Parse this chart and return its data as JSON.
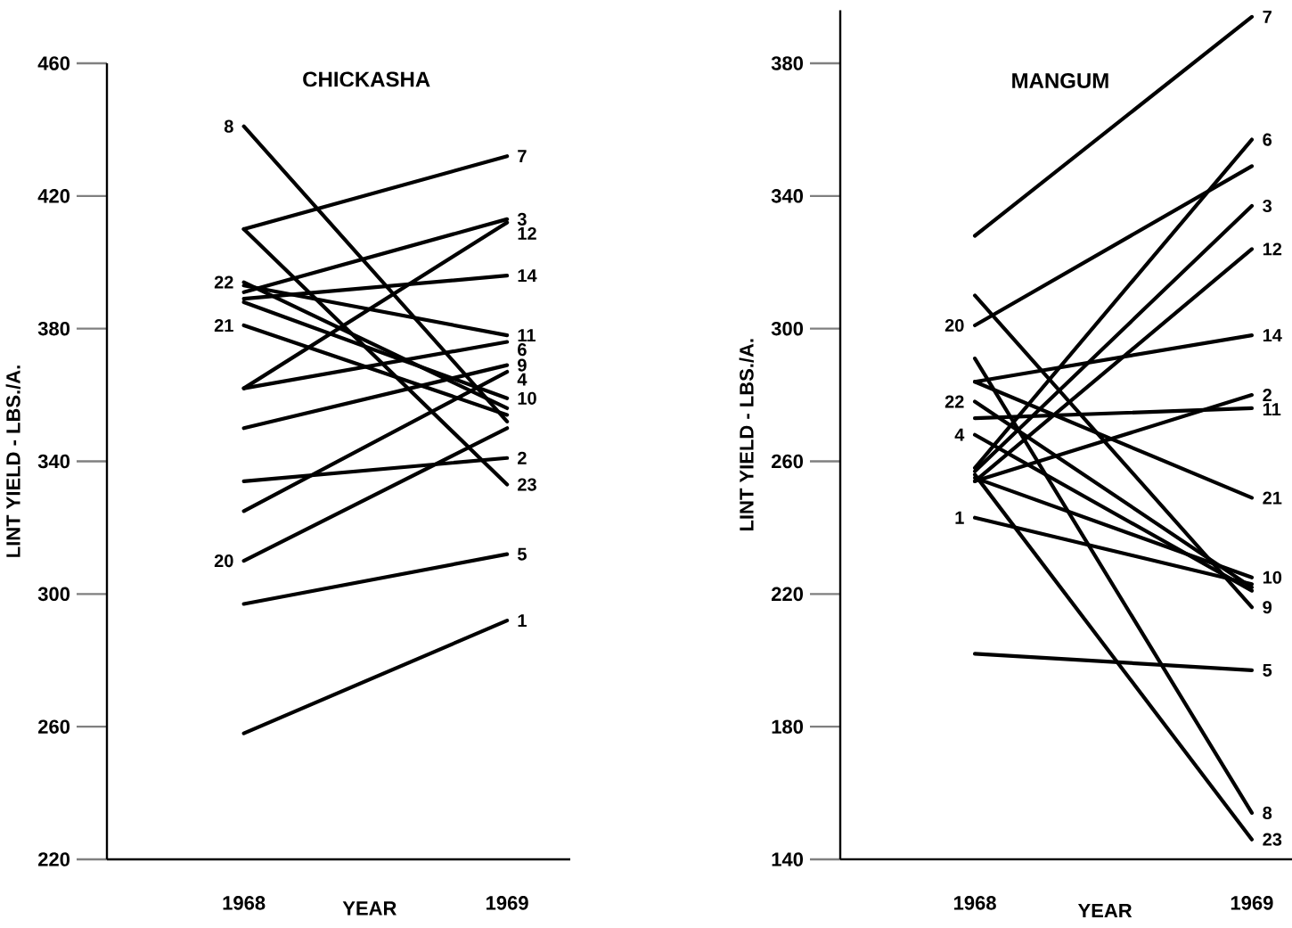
{
  "chart_data": [
    {
      "type": "line",
      "title": "CHICKASHA",
      "xlabel": "YEAR",
      "ylabel": "LINT YIELD - LBS./A.",
      "categories": [
        "1968",
        "1969"
      ],
      "ylim": [
        220,
        460
      ],
      "yticks": [
        220,
        260,
        300,
        340,
        380,
        420,
        460
      ],
      "series": [
        {
          "color": "#000000",
          "values": [
            410,
            432
          ]
        },
        {
          "color": "#000000",
          "values": [
            410,
            333
          ]
        },
        {
          "color": "#000000",
          "values": [
            441,
            352
          ]
        },
        {
          "color": "#000000",
          "values": [
            391,
            413
          ]
        },
        {
          "color": "#000000",
          "values": [
            362,
            412
          ]
        },
        {
          "color": "#000000",
          "values": [
            389,
            396
          ]
        },
        {
          "color": "#000000",
          "values": [
            393,
            378
          ]
        },
        {
          "color": "#000000",
          "values": [
            362,
            376
          ]
        },
        {
          "color": "#000000",
          "values": [
            350,
            369
          ]
        },
        {
          "color": "#000000",
          "values": [
            325,
            367
          ]
        },
        {
          "color": "#000000",
          "values": [
            388,
            359
          ]
        },
        {
          "color": "#000000",
          "values": [
            334,
            341
          ]
        },
        {
          "color": "#000000",
          "values": [
            310,
            350
          ]
        },
        {
          "color": "#000000",
          "values": [
            297,
            312
          ]
        },
        {
          "color": "#000000",
          "values": [
            258,
            292
          ]
        },
        {
          "color": "#000000",
          "values": [
            381,
            354
          ]
        },
        {
          "color": "#000000",
          "values": [
            394,
            356
          ]
        }
      ],
      "annotations": [
        {
          "text": "7",
          "x": "1969",
          "y": 432
        },
        {
          "text": "23",
          "x": "1969",
          "y": 333
        },
        {
          "text": "8",
          "x": "1968",
          "y": 441
        },
        {
          "text": "3",
          "x": "1969",
          "y": 413
        },
        {
          "text": "12",
          "x": "1969",
          "y": 412
        },
        {
          "text": "14",
          "x": "1969",
          "y": 396
        },
        {
          "text": "11",
          "x": "1969",
          "y": 378
        },
        {
          "text": "6",
          "x": "1969",
          "y": 376
        },
        {
          "text": "9",
          "x": "1969",
          "y": 369
        },
        {
          "text": "4",
          "x": "1969",
          "y": 367
        },
        {
          "text": "10",
          "x": "1969",
          "y": 359
        },
        {
          "text": "2",
          "x": "1969",
          "y": 341
        },
        {
          "text": "20",
          "x": "1968",
          "y": 310
        },
        {
          "text": "5",
          "x": "1969",
          "y": 312
        },
        {
          "text": "1",
          "x": "1969",
          "y": 292
        },
        {
          "text": "21",
          "x": "1968",
          "y": 381
        },
        {
          "text": "22",
          "x": "1968",
          "y": 394
        }
      ]
    },
    {
      "type": "line",
      "title": "MANGUM",
      "xlabel": "YEAR",
      "ylabel": "LINT YIELD - LBS./A.",
      "categories": [
        "1968",
        "1969"
      ],
      "ylim": [
        140,
        396
      ],
      "yticks": [
        140,
        180,
        220,
        260,
        300,
        340,
        380
      ],
      "series": [
        {
          "color": "#000000",
          "values": [
            328,
            394
          ]
        },
        {
          "color": "#000000",
          "values": [
            258,
            357
          ]
        },
        {
          "color": "#000000",
          "values": [
            301,
            349
          ]
        },
        {
          "color": "#000000",
          "values": [
            257,
            337
          ]
        },
        {
          "color": "#000000",
          "values": [
            254,
            324
          ]
        },
        {
          "color": "#000000",
          "values": [
            284,
            298
          ]
        },
        {
          "color": "#000000",
          "values": [
            254,
            280
          ]
        },
        {
          "color": "#000000",
          "values": [
            273,
            276
          ]
        },
        {
          "color": "#000000",
          "values": [
            284,
            249
          ]
        },
        {
          "color": "#000000",
          "values": [
            255,
            225
          ]
        },
        {
          "color": "#000000",
          "values": [
            310,
            216
          ]
        },
        {
          "color": "#000000",
          "values": [
            202,
            197
          ]
        },
        {
          "color": "#000000",
          "values": [
            291,
            154
          ]
        },
        {
          "color": "#000000",
          "values": [
            256,
            146
          ]
        },
        {
          "color": "#000000",
          "values": [
            278,
            222
          ]
        },
        {
          "color": "#000000",
          "values": [
            268,
            221
          ]
        },
        {
          "color": "#000000",
          "values": [
            243,
            223
          ]
        }
      ],
      "annotations": [
        {
          "text": "7",
          "x": "1969",
          "y": 394
        },
        {
          "text": "6",
          "x": "1969",
          "y": 357
        },
        {
          "text": "20",
          "x": "1968",
          "y": 301
        },
        {
          "text": "3",
          "x": "1969",
          "y": 337
        },
        {
          "text": "12",
          "x": "1969",
          "y": 324
        },
        {
          "text": "14",
          "x": "1969",
          "y": 298
        },
        {
          "text": "2",
          "x": "1969",
          "y": 280
        },
        {
          "text": "11",
          "x": "1969",
          "y": 276
        },
        {
          "text": "21",
          "x": "1969",
          "y": 249
        },
        {
          "text": "10",
          "x": "1969",
          "y": 225
        },
        {
          "text": "9",
          "x": "1969",
          "y": 216
        },
        {
          "text": "5",
          "x": "1969",
          "y": 197
        },
        {
          "text": "8",
          "x": "1969",
          "y": 154
        },
        {
          "text": "23",
          "x": "1969",
          "y": 146
        },
        {
          "text": "22",
          "x": "1968",
          "y": 278
        },
        {
          "text": "4",
          "x": "1968",
          "y": 268
        },
        {
          "text": "1",
          "x": "1968",
          "y": 243
        }
      ]
    }
  ]
}
